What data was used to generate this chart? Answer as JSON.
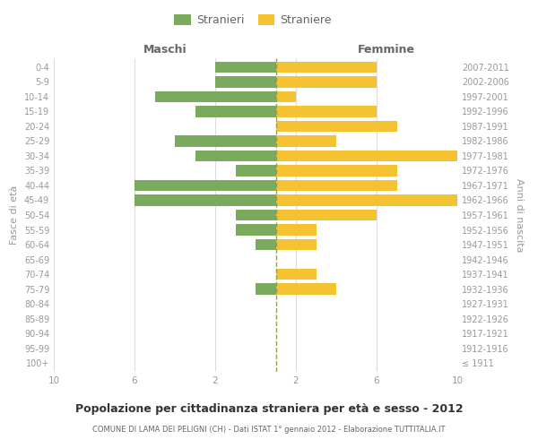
{
  "age_groups": [
    "100+",
    "95-99",
    "90-94",
    "85-89",
    "80-84",
    "75-79",
    "70-74",
    "65-69",
    "60-64",
    "55-59",
    "50-54",
    "45-49",
    "40-44",
    "35-39",
    "30-34",
    "25-29",
    "20-24",
    "15-19",
    "10-14",
    "5-9",
    "0-4"
  ],
  "birth_years": [
    "≤ 1911",
    "1912-1916",
    "1917-1921",
    "1922-1926",
    "1927-1931",
    "1932-1936",
    "1937-1941",
    "1942-1946",
    "1947-1951",
    "1952-1956",
    "1957-1961",
    "1962-1966",
    "1967-1971",
    "1972-1976",
    "1977-1981",
    "1982-1986",
    "1987-1991",
    "1992-1996",
    "1997-2001",
    "2002-2006",
    "2007-2011"
  ],
  "maschi": [
    0,
    0,
    0,
    0,
    0,
    1,
    0,
    0,
    1,
    2,
    2,
    7,
    7,
    2,
    4,
    5,
    0,
    4,
    6,
    3,
    3
  ],
  "femmine": [
    0,
    0,
    0,
    0,
    0,
    3,
    2,
    0,
    2,
    2,
    5,
    9,
    6,
    6,
    9,
    3,
    6,
    5,
    1,
    5,
    5
  ],
  "maschi_color": "#7aaa5e",
  "femmine_color": "#f5c232",
  "title": "Popolazione per cittadinanza straniera per età e sesso - 2012",
  "subtitle": "COMUNE DI LAMA DEI PELIGNI (CH) - Dati ISTAT 1° gennaio 2012 - Elaborazione TUTTITALIA.IT",
  "xlabel_left": "Maschi",
  "xlabel_right": "Femmine",
  "ylabel_left": "Fasce di età",
  "ylabel_right": "Anni di nascita",
  "xlim": 10,
  "legend_stranieri": "Stranieri",
  "legend_straniere": "Straniere",
  "background_color": "#ffffff",
  "grid_color": "#dddddd",
  "bar_height": 0.75,
  "dashed_line_color": "#999955",
  "label_color": "#999999",
  "header_color": "#666666",
  "title_color": "#333333",
  "subtitle_color": "#666666"
}
